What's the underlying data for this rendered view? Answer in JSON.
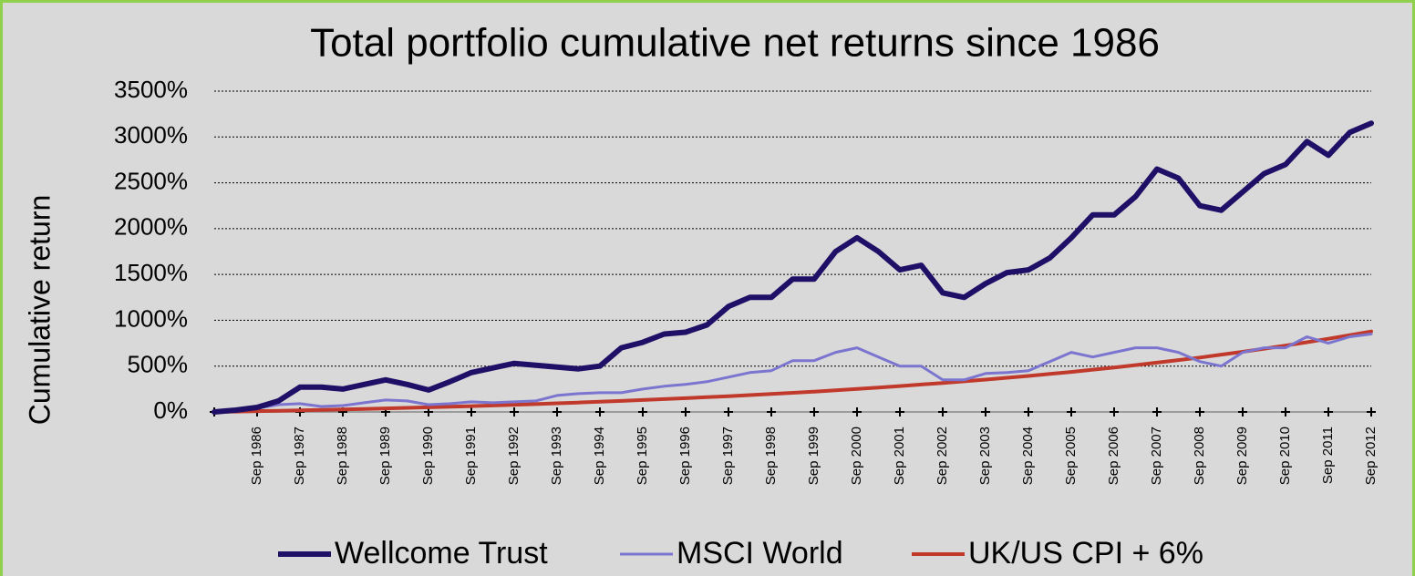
{
  "chart_data": {
    "type": "line",
    "title": "Total portfolio cumulative net returns since 1986",
    "y_label": "Cumulative return",
    "categories": [
      null,
      null,
      "Sep 1986",
      null,
      "Sep 1987",
      null,
      "Sep 1988",
      null,
      "Sep 1989",
      null,
      "Sep 1990",
      null,
      "Sep 1991",
      null,
      "Sep 1992",
      null,
      "Sep 1993",
      null,
      "Sep 1994",
      null,
      "Sep 1995",
      null,
      "Sep 1996",
      null,
      "Sep 1997",
      null,
      "Sep 1998",
      null,
      "Sep 1999",
      null,
      "Sep 2000",
      null,
      "Sep 2001",
      null,
      "Sep 2002",
      null,
      "Sep 2003",
      null,
      "Sep 2004",
      null,
      "Sep 2005",
      null,
      "Sep 2006",
      null,
      "Sep 2007",
      null,
      "Sep 2008",
      null,
      "Sep 2009",
      null,
      "Sep 2010",
      null,
      "Sep 2011",
      null,
      "Sep 2012"
    ],
    "series": [
      {
        "name": "Wellcome Trust",
        "color": "#1f0f66",
        "width": 6,
        "values": [
          0,
          20,
          50,
          120,
          270,
          270,
          250,
          300,
          350,
          300,
          240,
          330,
          430,
          480,
          530,
          510,
          490,
          470,
          500,
          700,
          760,
          850,
          870,
          950,
          1150,
          1250,
          1250,
          1450,
          1450,
          1750,
          1900,
          1750,
          1550,
          1600,
          1300,
          1250,
          1400,
          1520,
          1550,
          1680,
          1900,
          2150,
          2150,
          2350,
          2650,
          2550,
          2250,
          2200,
          2400,
          2600,
          2700,
          2950,
          2800,
          3050,
          3150
        ]
      },
      {
        "name": "MSCI World",
        "color": "#7b75d0",
        "width": 3,
        "values": [
          0,
          10,
          40,
          80,
          90,
          60,
          70,
          100,
          130,
          120,
          80,
          90,
          110,
          100,
          110,
          120,
          180,
          200,
          210,
          210,
          250,
          280,
          300,
          330,
          380,
          430,
          450,
          560,
          560,
          650,
          700,
          600,
          500,
          500,
          350,
          350,
          420,
          430,
          450,
          550,
          650,
          600,
          650,
          700,
          700,
          650,
          550,
          500,
          650,
          700,
          700,
          820,
          750,
          820,
          850
        ]
      },
      {
        "name": "UK/US CPI + 6%",
        "color": "#c0392b",
        "width": 4,
        "values": [
          0,
          4,
          9,
          13,
          18,
          23,
          28,
          33,
          39,
          45,
          51,
          57,
          64,
          71,
          79,
          86,
          94,
          102,
          111,
          120,
          130,
          140,
          150,
          161,
          172,
          184,
          196,
          209,
          222,
          236,
          251,
          266,
          282,
          299,
          316,
          334,
          353,
          373,
          393,
          415,
          437,
          461,
          485,
          511,
          538,
          566,
          594,
          625,
          656,
          690,
          724,
          761,
          798,
          838,
          878
        ]
      }
    ],
    "ylim": [
      0,
      3500
    ],
    "yticks": [
      {
        "value": 0,
        "label": "0%"
      },
      {
        "value": 500,
        "label": "500%"
      },
      {
        "value": 1000,
        "label": "1000%"
      },
      {
        "value": 1500,
        "label": "1500%"
      },
      {
        "value": 2000,
        "label": "2000%"
      },
      {
        "value": 2500,
        "label": "2500%"
      },
      {
        "value": 3000,
        "label": "3000%"
      },
      {
        "value": 3500,
        "label": "3500%"
      }
    ],
    "grid": true,
    "legend": "bottom"
  }
}
